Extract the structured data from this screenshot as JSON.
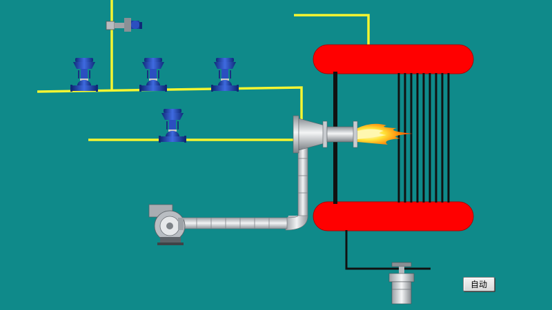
{
  "buttons": {
    "auto_label": "自动"
  },
  "colors": {
    "background": "#0f8a8a",
    "gas_pipe": "#f5f531",
    "drum": "#ff0000",
    "tube": "#111111",
    "valve": "#1d3fa0",
    "duct": "#cfd2d6",
    "flame": "#ff8a00"
  },
  "icons": {
    "control_valves": [
      "control-valve-icon",
      "control-valve-icon",
      "control-valve-icon",
      "control-valve-icon"
    ],
    "actuator_valve": "electric-actuator-valve-icon",
    "fan": "blower-fan-icon",
    "burner": "burner-icon",
    "flame": "flame-icon",
    "drain_valve": "drain-valve-icon"
  }
}
